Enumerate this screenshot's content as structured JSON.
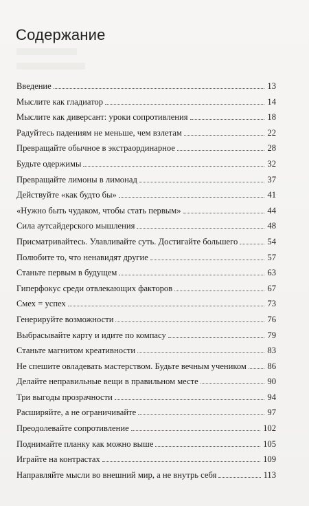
{
  "heading": "Содержание",
  "entries": [
    {
      "title": "Введение",
      "page": "13"
    },
    {
      "title": "Мыслите как гладиатор",
      "page": "14"
    },
    {
      "title": "Мыслите как диверсант: уроки сопротивления",
      "page": "18"
    },
    {
      "title": "Радуйтесь падениям не меньше, чем взлетам",
      "page": "22"
    },
    {
      "title": "Превращайте обычное в экстраординарное",
      "page": "28"
    },
    {
      "title": "Будьте одержимы",
      "page": "32"
    },
    {
      "title": "Превращайте лимоны в лимонад",
      "page": "37"
    },
    {
      "title": "Действуйте «как будто бы»",
      "page": "41"
    },
    {
      "title": "«Нужно быть чудаком, чтобы стать первым»",
      "page": "44"
    },
    {
      "title": "Сила аутсайдерского мышления",
      "page": "48"
    },
    {
      "title": "Присматривайтесь. Улавливайте суть. Достигайте большего",
      "page": "54"
    },
    {
      "title": "Полюбите то, что ненавидят другие",
      "page": "57"
    },
    {
      "title": "Станьте первым в будущем",
      "page": "63"
    },
    {
      "title": "Гиперфокус среди отвлекающих факторов",
      "page": "67"
    },
    {
      "title": "Смех = успех",
      "page": "73"
    },
    {
      "title": "Генерируйте возможности",
      "page": "76"
    },
    {
      "title": "Выбрасывайте карту и идите по компасу",
      "page": "79"
    },
    {
      "title": "Станьте магнитом креативности",
      "page": "83"
    },
    {
      "title": "Не спешите овладевать мастерством. Будьте вечным учеником",
      "page": "86"
    },
    {
      "title": "Делайте неправильные вещи в правильном месте",
      "page": "90"
    },
    {
      "title": "Три выгоды прозрачности",
      "page": "94"
    },
    {
      "title": "Расширяйте, а не ограничивайте",
      "page": "97"
    },
    {
      "title": "Преодолевайте сопротивление",
      "page": "102"
    },
    {
      "title": "Поднимайте планку как можно выше",
      "page": "105"
    },
    {
      "title": "Играйте на контрастах",
      "page": "109"
    },
    {
      "title": "Направляйте мысли во внешний мир, а не внутрь себя",
      "page": "113"
    }
  ]
}
